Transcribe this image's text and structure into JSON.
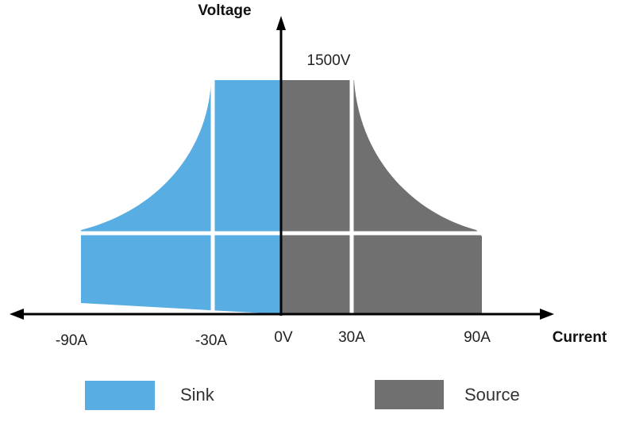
{
  "axes": {
    "y_label": "Voltage",
    "x_label": "Current",
    "voltage_max_label": "1500V",
    "tick_labels": [
      "-90A",
      "-30A",
      "0V",
      "30A",
      "90A"
    ]
  },
  "regions": [
    {
      "name": "Sink",
      "color": "#58ADE2"
    },
    {
      "name": "Source",
      "color": "#707070"
    }
  ],
  "legend": {
    "items": [
      {
        "label": "Sink",
        "color": "#58ADE2"
      },
      {
        "label": "Source",
        "color": "#707070"
      }
    ]
  }
}
